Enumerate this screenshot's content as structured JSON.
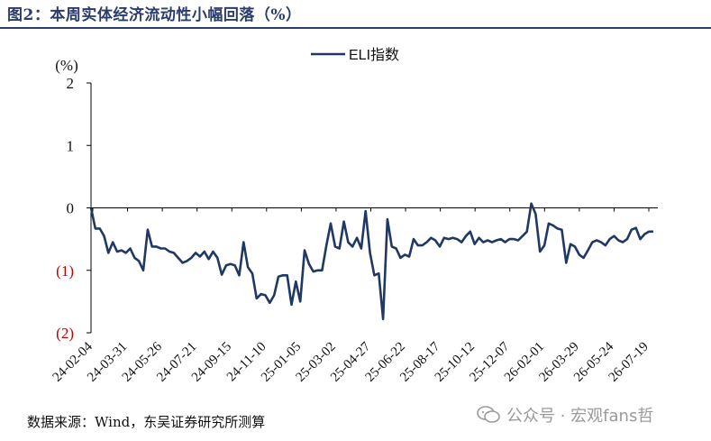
{
  "title": "图2：本周实体经济流动性小幅回落（%）",
  "source": "数据来源：Wind，东吴证券研究所测算",
  "watermark": "公众号 · 宏观fans哲",
  "colors": {
    "line": "#1f3864",
    "negative_tick": "#c00000",
    "title": "#2a3d6b"
  },
  "chart_data": {
    "type": "line",
    "ylabel": "(%)",
    "ylim": [
      -2,
      2
    ],
    "yticks": [
      {
        "value": 2,
        "label": "2"
      },
      {
        "value": 1,
        "label": "1"
      },
      {
        "value": 0,
        "label": "0"
      },
      {
        "value": -1,
        "label": "(1)"
      },
      {
        "value": -2,
        "label": "(2)"
      }
    ],
    "xtick_labels": [
      "24-02-04",
      "24-03-31",
      "24-05-26",
      "24-07-21",
      "24-09-15",
      "24-11-10",
      "25-01-05",
      "25-03-02",
      "25-04-27",
      "25-06-22",
      "25-08-17",
      "25-10-12",
      "25-12-07",
      "26-02-01",
      "26-03-29",
      "26-05-24",
      "26-07-19"
    ],
    "legend": "top-center",
    "series": [
      {
        "name": "ELI指数",
        "values": [
          0.0,
          -0.33,
          -0.33,
          -0.45,
          -0.72,
          -0.55,
          -0.7,
          -0.68,
          -0.72,
          -0.65,
          -0.8,
          -0.85,
          -1.0,
          -0.35,
          -0.62,
          -0.62,
          -0.65,
          -0.65,
          -0.7,
          -0.72,
          -0.8,
          -0.88,
          -0.85,
          -0.8,
          -0.72,
          -0.78,
          -0.7,
          -0.82,
          -0.7,
          -0.8,
          -1.07,
          -0.92,
          -0.9,
          -0.92,
          -1.08,
          -0.55,
          -0.95,
          -1.05,
          -1.45,
          -1.38,
          -1.4,
          -1.52,
          -1.4,
          -1.1,
          -1.08,
          -1.08,
          -1.55,
          -1.18,
          -1.5,
          -0.68,
          -0.9,
          -1.02,
          -1.0,
          -1.0,
          -0.6,
          -0.25,
          -0.62,
          -0.65,
          -0.22,
          -0.55,
          -0.62,
          -0.48,
          -0.65,
          -0.05,
          -0.72,
          -1.08,
          -1.05,
          -1.78,
          -0.18,
          -0.62,
          -0.65,
          -0.8,
          -0.75,
          -0.78,
          -0.5,
          -0.6,
          -0.6,
          -0.55,
          -0.48,
          -0.52,
          -0.62,
          -0.48,
          -0.5,
          -0.48,
          -0.5,
          -0.55,
          -0.45,
          -0.38,
          -0.58,
          -0.48,
          -0.55,
          -0.52,
          -0.55,
          -0.52,
          -0.5,
          -0.55,
          -0.5,
          -0.5,
          -0.52,
          -0.45,
          -0.38,
          0.07,
          -0.1,
          -0.7,
          -0.6,
          -0.25,
          -0.28,
          -0.33,
          -0.35,
          -0.88,
          -0.58,
          -0.62,
          -0.75,
          -0.8,
          -0.68,
          -0.55,
          -0.52,
          -0.55,
          -0.6,
          -0.5,
          -0.45,
          -0.52,
          -0.55,
          -0.5,
          -0.35,
          -0.32,
          -0.5,
          -0.42,
          -0.38,
          -0.38
        ]
      }
    ]
  }
}
